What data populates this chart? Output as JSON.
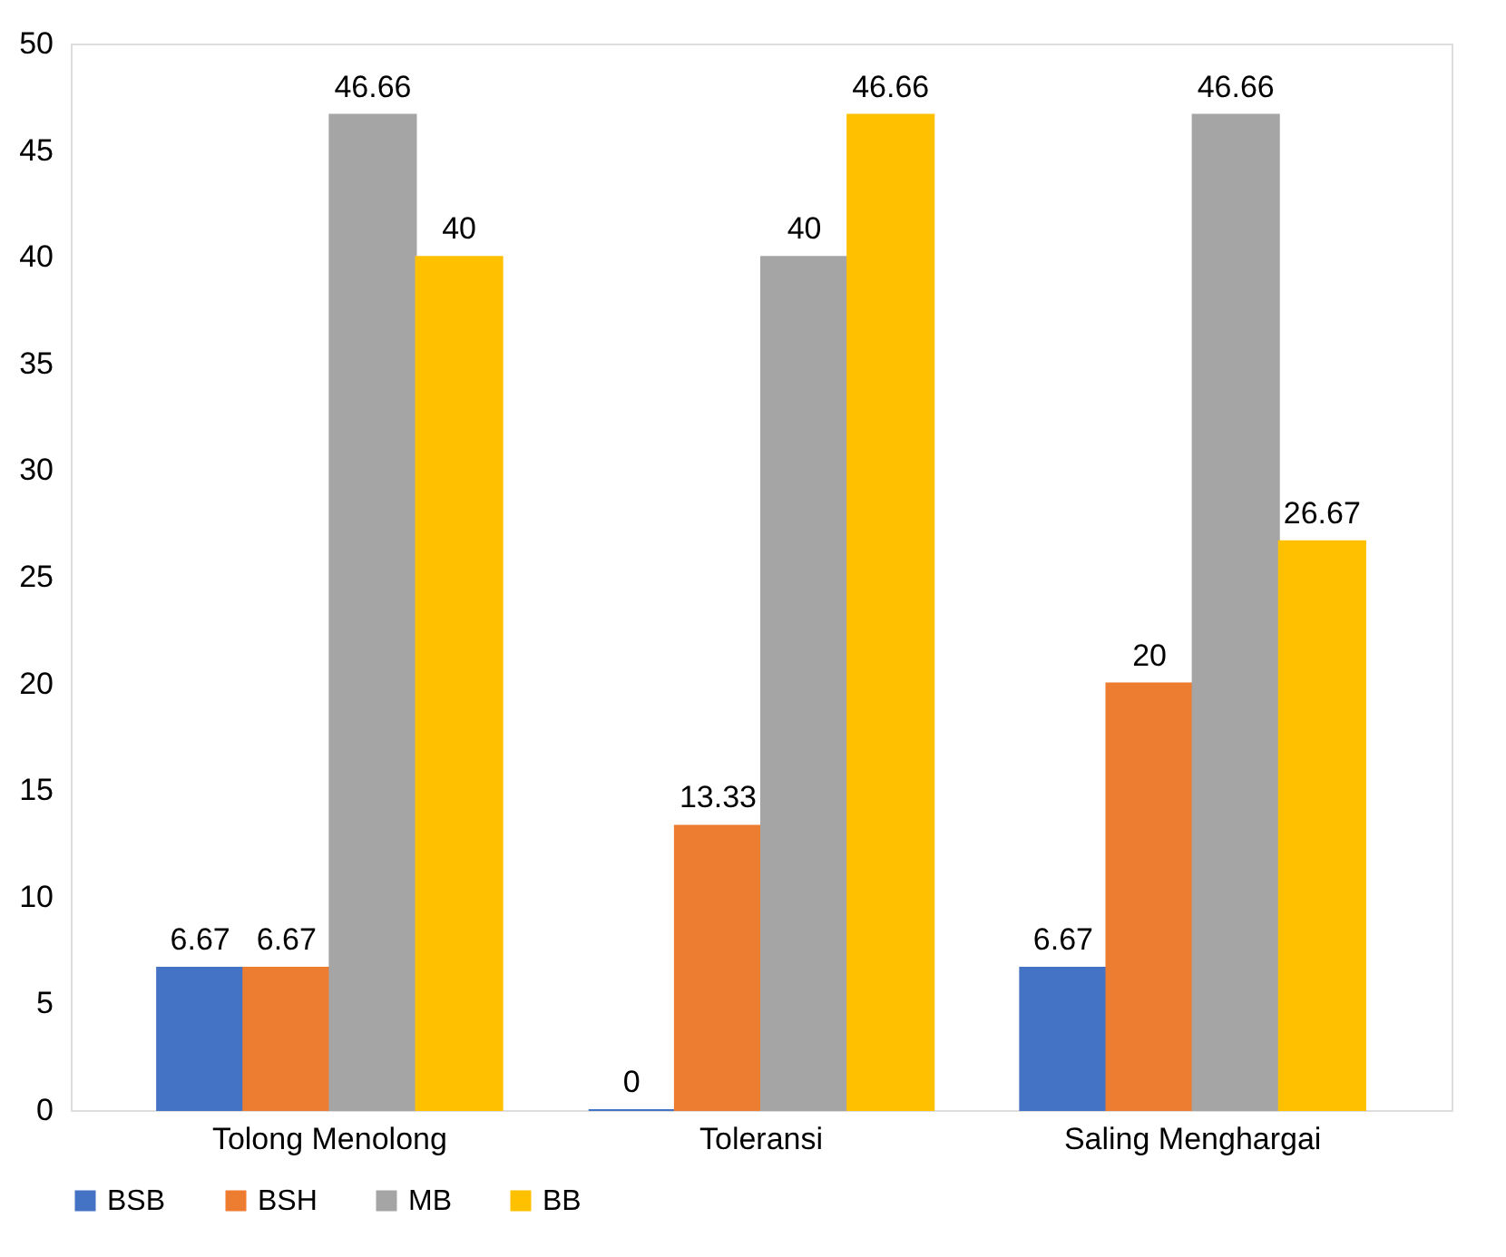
{
  "chart_data": {
    "type": "bar",
    "categories": [
      "Tolong Menolong",
      "Toleransi",
      "Saling Menghargai"
    ],
    "series": [
      {
        "name": "BSB",
        "color": "#4472c4",
        "values": [
          6.67,
          0,
          6.67
        ]
      },
      {
        "name": "BSH",
        "color": "#ed7d31",
        "values": [
          6.67,
          13.33,
          20
        ]
      },
      {
        "name": "MB",
        "color": "#a5a5a5",
        "values": [
          46.66,
          40,
          46.66
        ]
      },
      {
        "name": "BB",
        "color": "#ffc000",
        "values": [
          40,
          46.66,
          26.67
        ]
      }
    ],
    "ylim": [
      0,
      50
    ],
    "yticks": [
      0,
      5,
      10,
      15,
      20,
      25,
      30,
      35,
      40,
      45,
      50
    ],
    "grid": false,
    "legend": "bottom",
    "data_labels": true
  }
}
